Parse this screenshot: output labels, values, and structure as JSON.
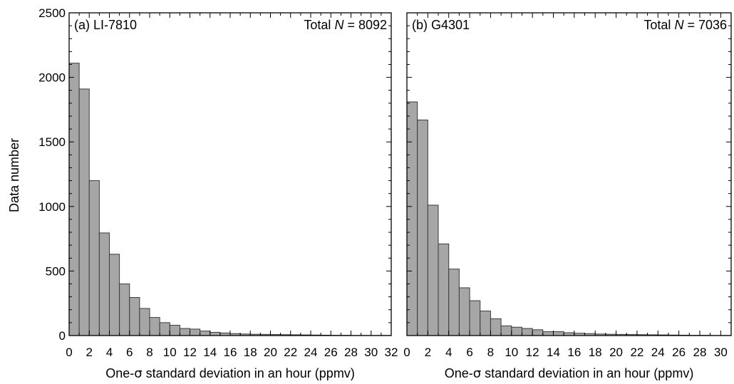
{
  "figure": {
    "y_axis_label": "Data number",
    "y_ticks": [
      "0",
      "500",
      "1000",
      "1500",
      "2000",
      "2500"
    ]
  },
  "chart_data": [
    {
      "type": "bar",
      "panel_label": "(a) LI-7810",
      "total_prefix": "Total ",
      "total_symbol": "N",
      "total_suffix": " = 8092",
      "xlabel_prefix": "One-",
      "xlabel_symbol": "σ",
      "xlabel_suffix": " standard deviation in an hour (ppmv)",
      "ylabel": "Data number",
      "xlim": [
        0,
        32
      ],
      "ylim": [
        0,
        2500
      ],
      "x_ticks": [
        "0",
        "2",
        "4",
        "6",
        "8",
        "10",
        "12",
        "14",
        "16",
        "18",
        "20",
        "22",
        "24",
        "26",
        "28",
        "30",
        "32"
      ],
      "bin_width": 1,
      "bin_starts": [
        0,
        1,
        2,
        3,
        4,
        5,
        6,
        7,
        8,
        9,
        10,
        11,
        12,
        13,
        14,
        15,
        16,
        17,
        18,
        19,
        20,
        21,
        22,
        23,
        24,
        25,
        26,
        27,
        28,
        29,
        30,
        31
      ],
      "values": [
        2110,
        1910,
        1200,
        795,
        630,
        400,
        295,
        210,
        140,
        100,
        80,
        55,
        50,
        35,
        25,
        20,
        15,
        12,
        10,
        9,
        8,
        7,
        6,
        5,
        4,
        3,
        2,
        2,
        1,
        1,
        1,
        1
      ]
    },
    {
      "type": "bar",
      "panel_label": "(b) G4301",
      "total_prefix": "Total ",
      "total_symbol": "N",
      "total_suffix": " = 7036",
      "xlabel_prefix": "One-",
      "xlabel_symbol": "σ",
      "xlabel_suffix": " standard deviation in an hour (ppmv)",
      "ylabel": "",
      "xlim": [
        0,
        31
      ],
      "ylim": [
        0,
        2500
      ],
      "x_ticks": [
        "0",
        "2",
        "4",
        "6",
        "8",
        "10",
        "12",
        "14",
        "16",
        "18",
        "20",
        "22",
        "24",
        "26",
        "28",
        "30"
      ],
      "bin_width": 1,
      "bin_starts": [
        0,
        1,
        2,
        3,
        4,
        5,
        6,
        7,
        8,
        9,
        10,
        11,
        12,
        13,
        14,
        15,
        16,
        17,
        18,
        19,
        20,
        21,
        22,
        23,
        24,
        25,
        26,
        27,
        28,
        29,
        30
      ],
      "values": [
        1810,
        1670,
        1010,
        710,
        515,
        370,
        270,
        190,
        130,
        75,
        65,
        55,
        45,
        30,
        30,
        22,
        18,
        15,
        12,
        10,
        9,
        8,
        7,
        6,
        5,
        4,
        3,
        2,
        2,
        1,
        1
      ]
    }
  ]
}
